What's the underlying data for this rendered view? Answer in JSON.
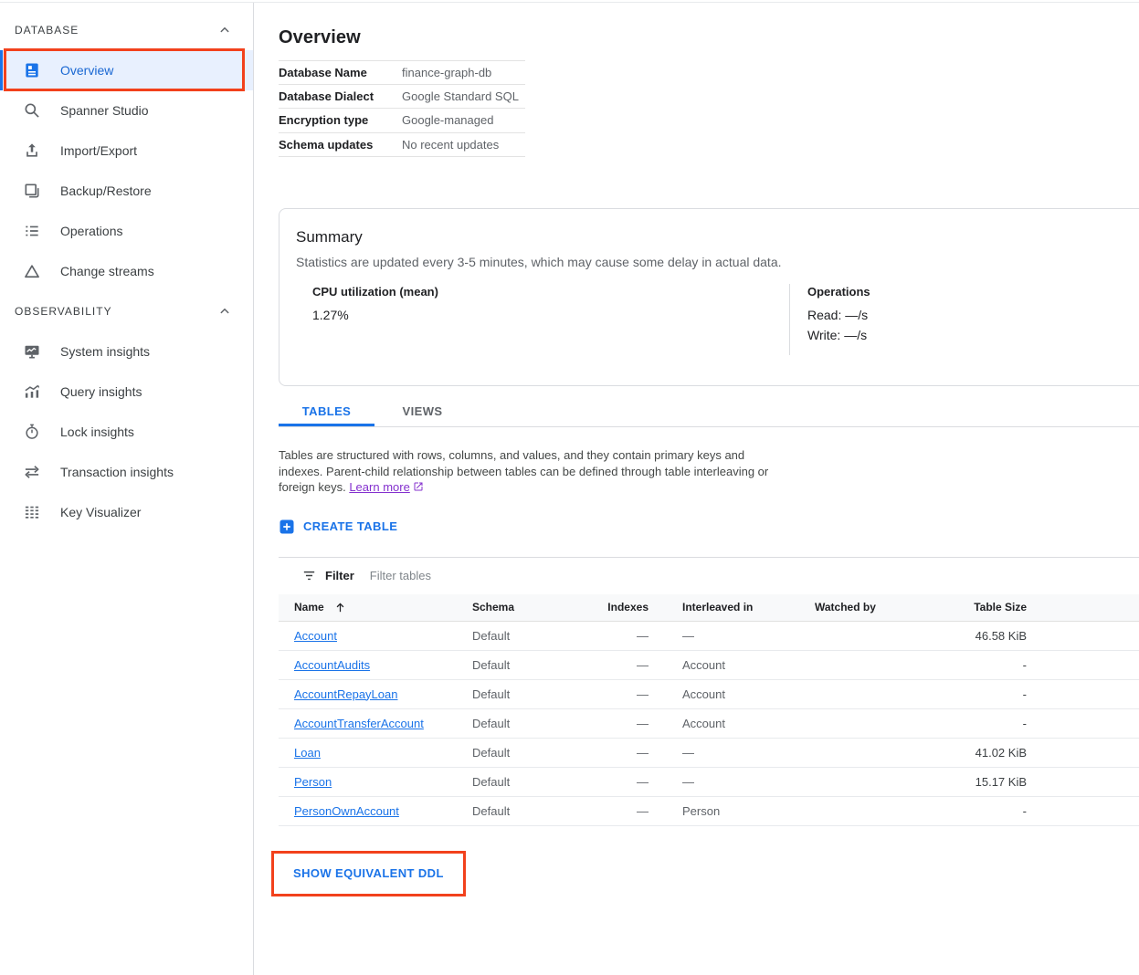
{
  "colors": {
    "accent_blue": "#1a73e8",
    "active_item_bg": "#e8f0fe",
    "annotation_red": "#f2411c",
    "link_purple": "#8430ce",
    "text_primary": "#202124",
    "text_secondary": "#5f6368"
  },
  "annotations": {
    "color": "#f2411c",
    "targets": [
      "sidebar-item-overview",
      "show-equivalent-ddl-button"
    ]
  },
  "sidebar": {
    "sections": [
      {
        "label": "DATABASE",
        "chevron_icon": "chevron-up-icon",
        "items": [
          {
            "label": "Overview",
            "icon": "summarize-icon",
            "active": true
          },
          {
            "label": "Spanner Studio",
            "icon": "search-icon",
            "active": false
          },
          {
            "label": "Import/Export",
            "icon": "upload-icon",
            "active": false
          },
          {
            "label": "Backup/Restore",
            "icon": "backup-restore-icon",
            "active": false
          },
          {
            "label": "Operations",
            "icon": "operations-list-icon",
            "active": false
          },
          {
            "label": "Change streams",
            "icon": "change-streams-icon",
            "active": false
          }
        ]
      },
      {
        "label": "OBSERVABILITY",
        "chevron_icon": "chevron-up-icon",
        "items": [
          {
            "label": "System insights",
            "icon": "system-insights-icon",
            "active": false
          },
          {
            "label": "Query insights",
            "icon": "query-insights-icon",
            "active": false
          },
          {
            "label": "Lock insights",
            "icon": "lock-insights-icon",
            "active": false
          },
          {
            "label": "Transaction insights",
            "icon": "transaction-insights-icon",
            "active": false
          },
          {
            "label": "Key Visualizer",
            "icon": "key-visualizer-icon",
            "active": false
          }
        ]
      }
    ]
  },
  "main": {
    "title": "Overview",
    "info": [
      {
        "label": "Database Name",
        "value": "finance-graph-db"
      },
      {
        "label": "Database Dialect",
        "value": "Google Standard SQL"
      },
      {
        "label": "Encryption type",
        "value": "Google-managed"
      },
      {
        "label": "Schema updates",
        "value": "No recent updates"
      }
    ],
    "summary": {
      "title": "Summary",
      "subtitle": "Statistics are updated every 3-5 minutes, which may cause some delay in actual data.",
      "cpu_label": "CPU utilization (mean)",
      "cpu_value": "1.27%",
      "ops_label": "Operations",
      "ops_read": "Read: —/s",
      "ops_write": "Write: —/s"
    },
    "tabs": [
      {
        "label": "TABLES",
        "active": true
      },
      {
        "label": "VIEWS",
        "active": false
      }
    ],
    "description": {
      "text": "Tables are structured with rows, columns, and values, and they contain primary keys and indexes. Parent-child relationship between tables can be defined through table interleaving or foreign keys. ",
      "link_label": "Learn more",
      "link_icon": "external-link-icon"
    },
    "create_table_label": "CREATE TABLE",
    "create_table_icon": "plus-icon",
    "filter": {
      "icon": "filter-list-icon",
      "label": "Filter",
      "placeholder": "Filter tables"
    },
    "table": {
      "columns": [
        "Name",
        "Schema",
        "Indexes",
        "Interleaved in",
        "Watched by",
        "Table Size"
      ],
      "sort_icon": "sort-ascending-icon",
      "sorted_column": "Name",
      "rows": [
        {
          "name": "Account",
          "schema": "Default",
          "indexes": "—",
          "interleaved_in": "—",
          "watched_by": "",
          "table_size": "46.58 KiB"
        },
        {
          "name": "AccountAudits",
          "schema": "Default",
          "indexes": "—",
          "interleaved_in": "Account",
          "watched_by": "",
          "table_size": "-"
        },
        {
          "name": "AccountRepayLoan",
          "schema": "Default",
          "indexes": "—",
          "interleaved_in": "Account",
          "watched_by": "",
          "table_size": "-"
        },
        {
          "name": "AccountTransferAccount",
          "schema": "Default",
          "indexes": "—",
          "interleaved_in": "Account",
          "watched_by": "",
          "table_size": "-"
        },
        {
          "name": "Loan",
          "schema": "Default",
          "indexes": "—",
          "interleaved_in": "—",
          "watched_by": "",
          "table_size": "41.02 KiB"
        },
        {
          "name": "Person",
          "schema": "Default",
          "indexes": "—",
          "interleaved_in": "—",
          "watched_by": "",
          "table_size": "15.17 KiB"
        },
        {
          "name": "PersonOwnAccount",
          "schema": "Default",
          "indexes": "—",
          "interleaved_in": "Person",
          "watched_by": "",
          "table_size": "-"
        }
      ]
    },
    "ddl_button_label": "SHOW EQUIVALENT DDL"
  }
}
